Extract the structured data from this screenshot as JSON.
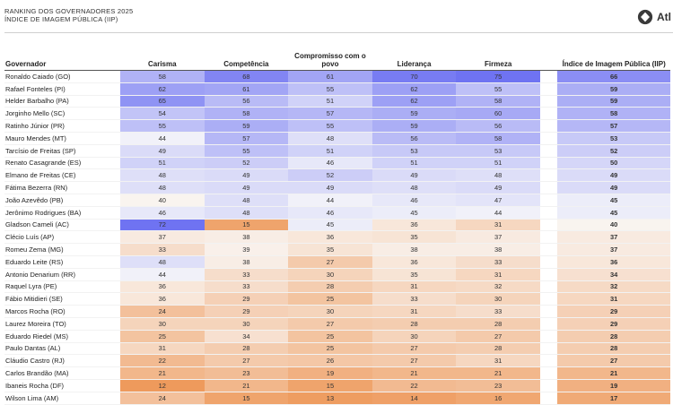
{
  "header": {
    "line1": "RANKING DOS GOVERNADORES 2025",
    "line2": "ÍNDICE DE IMAGEM PÚBLICA (IIP)",
    "logo_text": "Atl"
  },
  "chart_data": {
    "type": "table",
    "title": "RANKING DOS GOVERNADORES 2025",
    "subtitle": "ÍNDICE DE IMAGEM PÚBLICA (IIP)",
    "columns": [
      "Governador",
      "Carisma",
      "Competência",
      "Compromisso com o povo",
      "Liderança",
      "Firmeza",
      "Índice de Imagem Pública (IIP)"
    ],
    "color_scale": {
      "low": "#ee9a5c",
      "mid": "#fafafa",
      "high": "#6f73f2",
      "low_value": 12,
      "mid_value": 42,
      "high_value": 72
    },
    "rows": [
      {
        "name": "Ronaldo Caiado (GO)",
        "values": [
          58,
          68,
          61,
          70,
          75,
          66
        ]
      },
      {
        "name": "Rafael Fonteles (PI)",
        "values": [
          62,
          61,
          55,
          62,
          55,
          59
        ]
      },
      {
        "name": "Helder Barbalho (PA)",
        "values": [
          65,
          56,
          51,
          62,
          58,
          59
        ]
      },
      {
        "name": "Jorginho Mello (SC)",
        "values": [
          54,
          58,
          57,
          59,
          60,
          58
        ]
      },
      {
        "name": "Ratinho Júnior (PR)",
        "values": [
          55,
          59,
          55,
          59,
          56,
          57
        ]
      },
      {
        "name": "Mauro Mendes (MT)",
        "values": [
          44,
          57,
          48,
          56,
          58,
          53
        ]
      },
      {
        "name": "Tarcísio de Freitas (SP)",
        "values": [
          49,
          55,
          51,
          53,
          53,
          52
        ]
      },
      {
        "name": "Renato Casagrande (ES)",
        "values": [
          51,
          52,
          46,
          51,
          51,
          50
        ]
      },
      {
        "name": "Elmano de Freitas (CE)",
        "values": [
          48,
          49,
          52,
          49,
          48,
          49
        ]
      },
      {
        "name": "Fátima Bezerra (RN)",
        "values": [
          48,
          49,
          49,
          48,
          49,
          49
        ]
      },
      {
        "name": "João Azevêdo (PB)",
        "values": [
          40,
          48,
          44,
          46,
          47,
          45
        ]
      },
      {
        "name": "Jerônimo Rodrigues (BA)",
        "values": [
          46,
          48,
          46,
          45,
          44,
          45
        ]
      },
      {
        "name": "Gladson Cameli (AC)",
        "values": [
          72,
          15,
          45,
          36,
          31,
          40
        ]
      },
      {
        "name": "Clécio Luís (AP)",
        "values": [
          37,
          38,
          36,
          35,
          37,
          37
        ]
      },
      {
        "name": "Romeu Zema (MG)",
        "values": [
          33,
          39,
          35,
          38,
          38,
          37
        ]
      },
      {
        "name": "Eduardo Leite (RS)",
        "values": [
          48,
          38,
          27,
          36,
          33,
          36
        ]
      },
      {
        "name": "Antonio Denarium (RR)",
        "values": [
          44,
          33,
          30,
          35,
          31,
          34
        ]
      },
      {
        "name": "Raquel Lyra (PE)",
        "values": [
          36,
          33,
          28,
          31,
          32,
          32
        ]
      },
      {
        "name": "Fábio Mitidieri (SE)",
        "values": [
          36,
          29,
          25,
          33,
          30,
          31
        ]
      },
      {
        "name": "Marcos Rocha (RO)",
        "values": [
          24,
          29,
          30,
          31,
          33,
          29
        ]
      },
      {
        "name": "Laurez Moreira (TO)",
        "values": [
          30,
          30,
          27,
          28,
          28,
          29
        ]
      },
      {
        "name": "Eduardo Riedel (MS)",
        "values": [
          25,
          34,
          25,
          30,
          27,
          28
        ]
      },
      {
        "name": "Paulo Dantas (AL)",
        "values": [
          31,
          28,
          25,
          27,
          28,
          28
        ]
      },
      {
        "name": "Cláudio Castro (RJ)",
        "values": [
          22,
          27,
          26,
          27,
          31,
          27
        ]
      },
      {
        "name": "Carlos Brandão (MA)",
        "values": [
          21,
          23,
          19,
          21,
          21,
          21
        ]
      },
      {
        "name": "Ibaneis Rocha (DF)",
        "values": [
          12,
          21,
          15,
          22,
          23,
          19
        ]
      },
      {
        "name": "Wilson Lima (AM)",
        "values": [
          24,
          15,
          13,
          14,
          16,
          17
        ]
      }
    ]
  }
}
